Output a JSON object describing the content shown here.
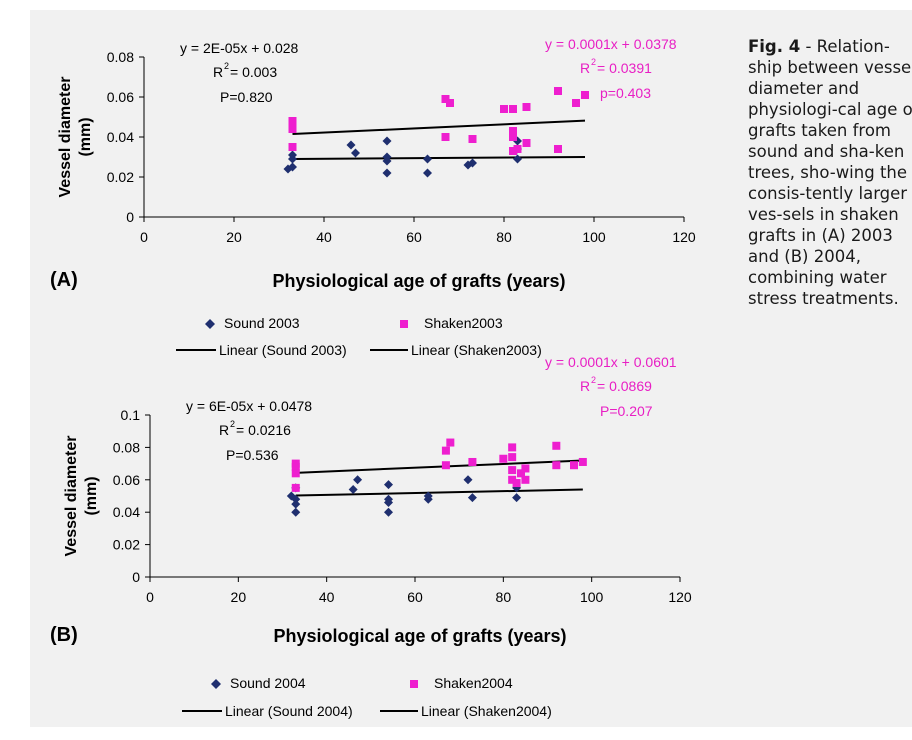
{
  "caption": {
    "label": "Fig. 4",
    "text": " - Relation-ship between vessel diameter and physiologi-cal age of grafts taken from sound and sha-ken trees, sho-wing the consis-tently larger ves-sels in shaken grafts in (A) 2003 and (B) 2004, combining water stress treatments."
  },
  "colors": {
    "sound": "#1f2f6f",
    "shaken": "#ee1fcf",
    "trend": "#000000",
    "shaken_eq_text": "#e81fc4"
  },
  "chart_data": [
    {
      "type": "scatter",
      "panel_label": "(A)",
      "xlabel": "Physiological age of grafts (years)",
      "ylabel": "Vessel diameter (mm)",
      "xlim": [
        0,
        120
      ],
      "ylim": [
        0,
        0.08
      ],
      "xticks": [
        "0",
        "20",
        "40",
        "60",
        "80",
        "100",
        "120"
      ],
      "yticks": [
        "0",
        "0.02",
        "0.04",
        "0.06",
        "0.08"
      ],
      "series": [
        {
          "name": "Sound 2003",
          "marker": "diamond",
          "points": [
            [
              32,
              0.024
            ],
            [
              33,
              0.025
            ],
            [
              33,
              0.029
            ],
            [
              33,
              0.031
            ],
            [
              46,
              0.036
            ],
            [
              47,
              0.032
            ],
            [
              54,
              0.038
            ],
            [
              54,
              0.03
            ],
            [
              54,
              0.028
            ],
            [
              54,
              0.022
            ],
            [
              63,
              0.022
            ],
            [
              63,
              0.029
            ],
            [
              72,
              0.026
            ],
            [
              73,
              0.027
            ],
            [
              83,
              0.029
            ],
            [
              83,
              0.034
            ],
            [
              83,
              0.038
            ]
          ]
        },
        {
          "name": "Shaken2003",
          "marker": "square",
          "points": [
            [
              33,
              0.048
            ],
            [
              33,
              0.046
            ],
            [
              33,
              0.044
            ],
            [
              33,
              0.035
            ],
            [
              67,
              0.059
            ],
            [
              68,
              0.057
            ],
            [
              67,
              0.04
            ],
            [
              73,
              0.039
            ],
            [
              80,
              0.054
            ],
            [
              82,
              0.054
            ],
            [
              82,
              0.043
            ],
            [
              82,
              0.04
            ],
            [
              82,
              0.033
            ],
            [
              83,
              0.034
            ],
            [
              85,
              0.055
            ],
            [
              85,
              0.037
            ],
            [
              92,
              0.063
            ],
            [
              92,
              0.034
            ],
            [
              96,
              0.057
            ],
            [
              98,
              0.061
            ]
          ]
        }
      ],
      "trendlines": [
        {
          "name": "Linear (Sound 2003)",
          "x": [
            33,
            98
          ],
          "y": [
            0.029,
            0.03
          ],
          "equation": "y = 2E-05x + 0.028",
          "r2_text": "R",
          "r2_value": " = 0.003",
          "p": "P=0.820"
        },
        {
          "name": "Linear (Shaken2003)",
          "x": [
            33,
            98
          ],
          "y": [
            0.0415,
            0.0482
          ],
          "equation": "y = 0.0001x + 0.0378",
          "r2_text": "R",
          "r2_value": " = 0.0391",
          "p": "p=0.403"
        }
      ]
    },
    {
      "type": "scatter",
      "panel_label": "(B)",
      "xlabel": "Physiological age of grafts (years)",
      "ylabel": "Vessel diameter (mm)",
      "xlim": [
        0,
        120
      ],
      "ylim": [
        0,
        0.1
      ],
      "xticks": [
        "0",
        "20",
        "40",
        "60",
        "80",
        "100",
        "120"
      ],
      "yticks": [
        "0",
        "0.02",
        "0.04",
        "0.06",
        "0.08",
        "0.1"
      ],
      "series": [
        {
          "name": "Sound 2004",
          "marker": "diamond",
          "points": [
            [
              32,
              0.05
            ],
            [
              33,
              0.045
            ],
            [
              33,
              0.04
            ],
            [
              33,
              0.055
            ],
            [
              33,
              0.048
            ],
            [
              46,
              0.054
            ],
            [
              47,
              0.06
            ],
            [
              54,
              0.057
            ],
            [
              54,
              0.048
            ],
            [
              54,
              0.046
            ],
            [
              54,
              0.04
            ],
            [
              63,
              0.048
            ],
            [
              63,
              0.05
            ],
            [
              72,
              0.06
            ],
            [
              73,
              0.049
            ],
            [
              83,
              0.049
            ],
            [
              83,
              0.055
            ]
          ]
        },
        {
          "name": "Shaken2004",
          "marker": "square",
          "points": [
            [
              33,
              0.07
            ],
            [
              33,
              0.068
            ],
            [
              33,
              0.064
            ],
            [
              33,
              0.055
            ],
            [
              67,
              0.078
            ],
            [
              68,
              0.083
            ],
            [
              67,
              0.069
            ],
            [
              73,
              0.071
            ],
            [
              80,
              0.073
            ],
            [
              82,
              0.08
            ],
            [
              82,
              0.074
            ],
            [
              82,
              0.066
            ],
            [
              82,
              0.06
            ],
            [
              83,
              0.058
            ],
            [
              84,
              0.064
            ],
            [
              85,
              0.067
            ],
            [
              85,
              0.06
            ],
            [
              92,
              0.081
            ],
            [
              92,
              0.069
            ],
            [
              96,
              0.069
            ],
            [
              98,
              0.071
            ]
          ]
        }
      ],
      "trendlines": [
        {
          "name": "Linear (Sound 2004)",
          "x": [
            33,
            98
          ],
          "y": [
            0.0503,
            0.054
          ],
          "equation": "y = 6E-05x + 0.0478",
          "r2_text": "R",
          "r2_value": " = 0.0216",
          "p": "P=0.536"
        },
        {
          "name": "Linear (Shaken2004)",
          "x": [
            33,
            98
          ],
          "y": [
            0.0643,
            0.0719
          ],
          "equation": "y = 0.0001x + 0.0601",
          "r2_text": "R",
          "r2_value": " = 0.0869",
          "p": "P=0.207"
        }
      ]
    }
  ]
}
